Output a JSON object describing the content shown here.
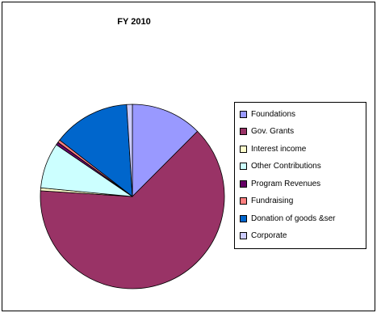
{
  "chart_data": {
    "type": "pie",
    "title": "FY 2010",
    "slices": [
      {
        "label": "Foundations",
        "value": 12.5,
        "color": "#9999ff"
      },
      {
        "label": "Gov. Grants",
        "value": 63.5,
        "color": "#993366"
      },
      {
        "label": "Interest income",
        "value": 0.5,
        "color": "#ffffcc"
      },
      {
        "label": "Other Contributions",
        "value": 8.0,
        "color": "#ccffff"
      },
      {
        "label": "Program Revenues",
        "value": 0.5,
        "color": "#660066"
      },
      {
        "label": "Fundraising",
        "value": 0.5,
        "color": "#ff8080"
      },
      {
        "label": "Donation of goods &ser",
        "value": 13.5,
        "color": "#0066cc"
      },
      {
        "label": "Corporate",
        "value": 1.0,
        "color": "#ccccff"
      }
    ],
    "legend_labels": [
      "Foundations",
      "Gov. Grants",
      "Interest income",
      "Other Contributions",
      "Program Revenues",
      "Fundraising",
      "Donation of goods &ser",
      "Corporate"
    ],
    "legend_position": "right"
  }
}
